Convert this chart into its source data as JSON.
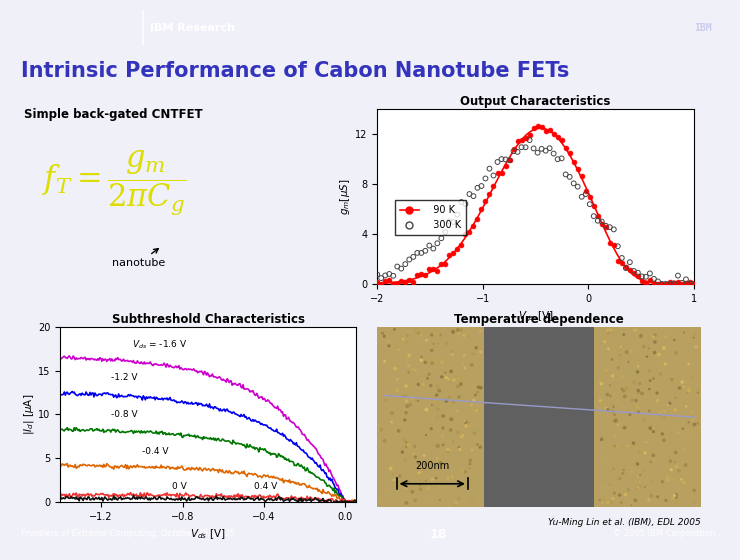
{
  "title": "Intrinsic Performance of Cabon Nanotube FETs",
  "title_color": "#3333bb",
  "header_bg": "#6666bb",
  "header_text": "IBM Research",
  "footer_bg": "#6666bb",
  "footer_left": "Frontiers of Extreme Computing, October 25, 2005",
  "footer_center": "18",
  "footer_right": "© 2005 IBM Corporation",
  "slide_bg": "#f0f0f8",
  "top_left_title": "Simple back-gated CNTFET",
  "nanotube_label": "nanotube",
  "top_right_title": "Output Characteristics",
  "gm_ylabel": "$g_m[\\mu S]$",
  "gm_xlabel": "$V_{gs}$ [V]",
  "gm_xlim": [
    -2.0,
    1.0
  ],
  "gm_ylim": [
    0,
    14
  ],
  "gm_yticks": [
    0,
    4,
    8,
    12
  ],
  "gm_xticks": [
    -2.0,
    -1.0,
    0.0,
    1.0
  ],
  "legend_90K": "  90 K",
  "legend_300K": "  300 K",
  "bottom_left_title": "Subthreshold Characteristics",
  "ids_ylabel": "$|I_d|$ [$\\mu$A]",
  "ids_xlabel": "$V_{ds}$ [V]",
  "ids_xlim": [
    -1.4,
    0.05
  ],
  "ids_ylim": [
    0,
    20
  ],
  "ids_yticks": [
    0,
    5,
    10,
    15,
    20
  ],
  "ids_xticks": [
    -1.2,
    -0.8,
    -0.4,
    0.0
  ],
  "vds_labels": [
    "$V_{ds}$ = -1.6 V",
    "-1.2 V",
    "-0.8 V",
    "-0.4 V",
    "0 V",
    "0.4 V"
  ],
  "vds_colors": [
    "#cc00cc",
    "#0000ee",
    "#007700",
    "#dd6600",
    "#ee3333",
    "#111111"
  ],
  "bottom_right_title": "Temperature dependence",
  "scale_bar": "200nm",
  "ref_text": "Yu-Ming Lin et al. (IBM), EDL 2005"
}
